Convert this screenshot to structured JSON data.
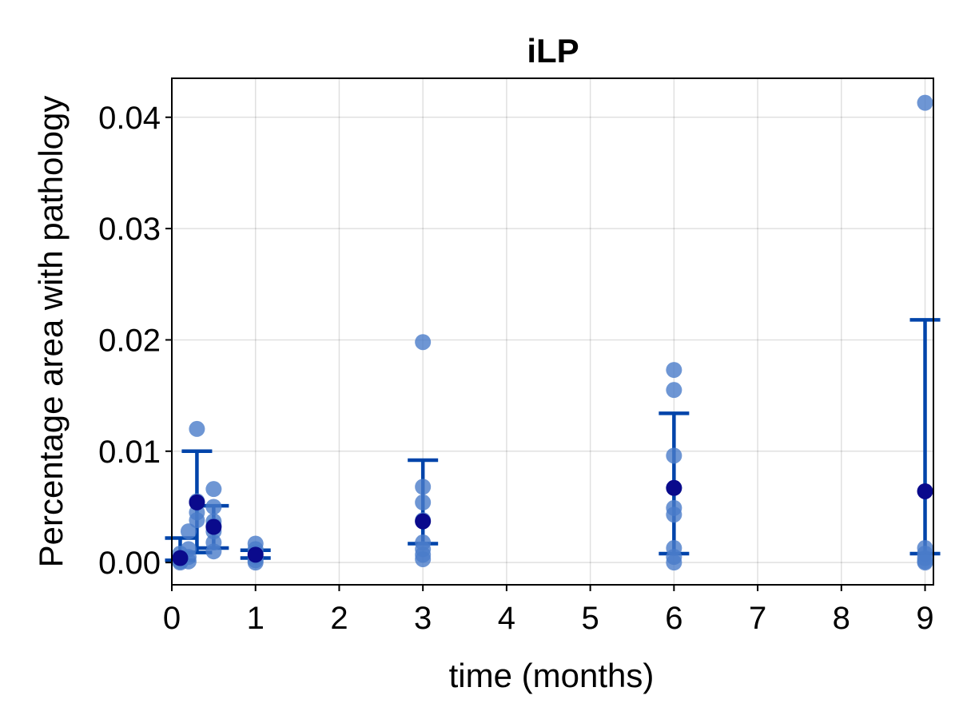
{
  "chart_data": {
    "type": "scatter",
    "title": "iLP",
    "xlabel": "time (months)",
    "ylabel": "Percentage area with pathology",
    "xlim": [
      0,
      9.1
    ],
    "ylim": [
      -0.002,
      0.0435
    ],
    "xticks": [
      0,
      1,
      2,
      3,
      4,
      5,
      6,
      7,
      8,
      9
    ],
    "xtick_labels": [
      "0",
      "1",
      "2",
      "3",
      "4",
      "5",
      "6",
      "7",
      "8",
      "9"
    ],
    "yticks": [
      0.0,
      0.01,
      0.02,
      0.03,
      0.04
    ],
    "ytick_labels": [
      "0.00",
      "0.01",
      "0.02",
      "0.03",
      "0.04"
    ],
    "grid": true,
    "colors": {
      "points": "#4a7cc9",
      "points_opacity": 0.8,
      "mean": "#0a0a8c",
      "errorbar": "#0044aa"
    },
    "points": [
      {
        "x": 0.1,
        "y": 0.0008
      },
      {
        "x": 0.1,
        "y": 0.0004
      },
      {
        "x": 0.1,
        "y": 0.0001
      },
      {
        "x": 0.1,
        "y": 0.0
      },
      {
        "x": 0.2,
        "y": 0.0028
      },
      {
        "x": 0.2,
        "y": 0.0012
      },
      {
        "x": 0.2,
        "y": 0.0005
      },
      {
        "x": 0.2,
        "y": 0.0001
      },
      {
        "x": 0.3,
        "y": 0.012
      },
      {
        "x": 0.3,
        "y": 0.0055
      },
      {
        "x": 0.3,
        "y": 0.0045
      },
      {
        "x": 0.3,
        "y": 0.0038
      },
      {
        "x": 0.5,
        "y": 0.0066
      },
      {
        "x": 0.5,
        "y": 0.005
      },
      {
        "x": 0.5,
        "y": 0.0037
      },
      {
        "x": 0.5,
        "y": 0.0033
      },
      {
        "x": 0.5,
        "y": 0.0028
      },
      {
        "x": 0.5,
        "y": 0.0018
      },
      {
        "x": 0.5,
        "y": 0.001
      },
      {
        "x": 1,
        "y": 0.0017
      },
      {
        "x": 1,
        "y": 0.0012
      },
      {
        "x": 1,
        "y": 0.0009
      },
      {
        "x": 1,
        "y": 0.0005
      },
      {
        "x": 1,
        "y": 0.0002
      },
      {
        "x": 1,
        "y": 0.0
      },
      {
        "x": 3,
        "y": 0.0198
      },
      {
        "x": 3,
        "y": 0.0068
      },
      {
        "x": 3,
        "y": 0.0054
      },
      {
        "x": 3,
        "y": 0.0038
      },
      {
        "x": 3,
        "y": 0.0018
      },
      {
        "x": 3,
        "y": 0.0012
      },
      {
        "x": 3,
        "y": 0.0007
      },
      {
        "x": 3,
        "y": 0.0003
      },
      {
        "x": 6,
        "y": 0.0173
      },
      {
        "x": 6,
        "y": 0.0155
      },
      {
        "x": 6,
        "y": 0.0096
      },
      {
        "x": 6,
        "y": 0.0067
      },
      {
        "x": 6,
        "y": 0.0049
      },
      {
        "x": 6,
        "y": 0.0043
      },
      {
        "x": 6,
        "y": 0.0013
      },
      {
        "x": 6,
        "y": 0.0005
      },
      {
        "x": 6,
        "y": 0.0
      },
      {
        "x": 9,
        "y": 0.0413
      },
      {
        "x": 9,
        "y": 0.0013
      },
      {
        "x": 9,
        "y": 0.0008
      },
      {
        "x": 9,
        "y": 0.0004
      },
      {
        "x": 9,
        "y": 0.0001
      },
      {
        "x": 9,
        "y": 0.0
      }
    ],
    "summary": [
      {
        "x": 0.1,
        "mean": 0.0004,
        "lower": 0.0002,
        "upper": 0.0022
      },
      {
        "x": 0.3,
        "mean": 0.0054,
        "lower": 0.0009,
        "upper": 0.01
      },
      {
        "x": 0.5,
        "mean": 0.0032,
        "lower": 0.0013,
        "upper": 0.0051
      },
      {
        "x": 1,
        "mean": 0.0007,
        "lower": 0.0004,
        "upper": 0.0011
      },
      {
        "x": 3,
        "mean": 0.0037,
        "lower": 0.0017,
        "upper": 0.0092
      },
      {
        "x": 6,
        "mean": 0.0067,
        "lower": 0.0008,
        "upper": 0.0134
      },
      {
        "x": 9,
        "mean": 0.0064,
        "lower": 0.0008,
        "upper": 0.0218
      }
    ]
  }
}
